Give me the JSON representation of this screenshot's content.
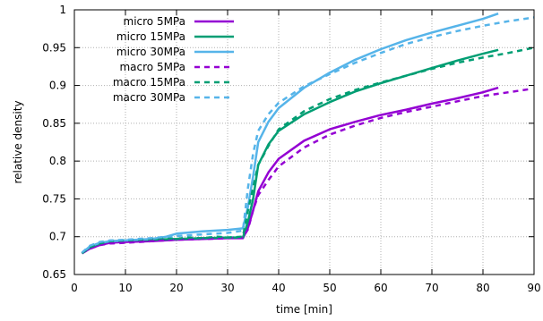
{
  "chart_data": {
    "type": "line",
    "title": "",
    "xlabel": "time [min]",
    "ylabel": "relative density",
    "xlim": [
      0,
      90
    ],
    "ylim": [
      0.65,
      1.0
    ],
    "x_ticks": [
      0,
      10,
      20,
      30,
      40,
      50,
      60,
      70,
      80,
      90
    ],
    "x_tick_labels": [
      "0",
      "10",
      "20",
      "30",
      "40",
      "50",
      "60",
      "70",
      "80",
      "90"
    ],
    "y_ticks": [
      0.65,
      0.7,
      0.75,
      0.8,
      0.85,
      0.9,
      0.95,
      1.0
    ],
    "y_tick_labels": [
      "0.65",
      "0.7",
      "0.75",
      "0.8",
      "0.85",
      "0.9",
      "0.95",
      "1"
    ],
    "grid": true,
    "legend_position": "top-left",
    "series": [
      {
        "name": "micro  5MPa",
        "color": "#9400d3",
        "style": "solid",
        "points": [
          [
            1.5,
            0.678
          ],
          [
            3,
            0.684
          ],
          [
            5,
            0.689
          ],
          [
            7,
            0.692
          ],
          [
            10,
            0.693
          ],
          [
            15,
            0.694
          ],
          [
            20,
            0.696
          ],
          [
            25,
            0.697
          ],
          [
            30,
            0.698
          ],
          [
            33,
            0.698
          ],
          [
            34,
            0.712
          ],
          [
            35,
            0.735
          ],
          [
            36,
            0.76
          ],
          [
            38,
            0.785
          ],
          [
            40,
            0.803
          ],
          [
            45,
            0.827
          ],
          [
            50,
            0.842
          ],
          [
            55,
            0.852
          ],
          [
            60,
            0.861
          ],
          [
            65,
            0.868
          ],
          [
            70,
            0.876
          ],
          [
            75,
            0.883
          ],
          [
            80,
            0.891
          ],
          [
            83,
            0.897
          ]
        ]
      },
      {
        "name": "micro 15MPa",
        "color": "#009e73",
        "style": "solid",
        "points": [
          [
            1.5,
            0.678
          ],
          [
            3,
            0.686
          ],
          [
            5,
            0.691
          ],
          [
            7,
            0.694
          ],
          [
            10,
            0.695
          ],
          [
            15,
            0.696
          ],
          [
            20,
            0.697
          ],
          [
            25,
            0.698
          ],
          [
            30,
            0.699
          ],
          [
            33,
            0.699
          ],
          [
            34,
            0.72
          ],
          [
            35,
            0.75
          ],
          [
            36,
            0.795
          ],
          [
            38,
            0.822
          ],
          [
            40,
            0.84
          ],
          [
            45,
            0.862
          ],
          [
            50,
            0.878
          ],
          [
            55,
            0.892
          ],
          [
            60,
            0.903
          ],
          [
            65,
            0.913
          ],
          [
            70,
            0.923
          ],
          [
            75,
            0.933
          ],
          [
            80,
            0.942
          ],
          [
            83,
            0.947
          ]
        ]
      },
      {
        "name": "micro 30MPa",
        "color": "#56b4e9",
        "style": "solid",
        "points": [
          [
            1.5,
            0.678
          ],
          [
            3,
            0.687
          ],
          [
            5,
            0.692
          ],
          [
            7,
            0.694
          ],
          [
            10,
            0.695
          ],
          [
            15,
            0.697
          ],
          [
            18,
            0.7
          ],
          [
            20,
            0.704
          ],
          [
            25,
            0.707
          ],
          [
            30,
            0.709
          ],
          [
            33,
            0.711
          ],
          [
            34,
            0.74
          ],
          [
            35,
            0.78
          ],
          [
            36,
            0.825
          ],
          [
            38,
            0.852
          ],
          [
            40,
            0.87
          ],
          [
            45,
            0.897
          ],
          [
            50,
            0.917
          ],
          [
            55,
            0.934
          ],
          [
            60,
            0.948
          ],
          [
            65,
            0.96
          ],
          [
            70,
            0.97
          ],
          [
            75,
            0.979
          ],
          [
            80,
            0.988
          ],
          [
            83,
            0.995
          ]
        ]
      },
      {
        "name": "macro  5MPa",
        "color": "#9400d3",
        "style": "dashed",
        "points": [
          [
            1.5,
            0.678
          ],
          [
            3,
            0.684
          ],
          [
            5,
            0.689
          ],
          [
            7,
            0.691
          ],
          [
            10,
            0.692
          ],
          [
            15,
            0.694
          ],
          [
            20,
            0.696
          ],
          [
            25,
            0.697
          ],
          [
            30,
            0.698
          ],
          [
            33,
            0.699
          ],
          [
            34,
            0.71
          ],
          [
            35,
            0.735
          ],
          [
            36,
            0.755
          ],
          [
            38,
            0.775
          ],
          [
            40,
            0.793
          ],
          [
            45,
            0.818
          ],
          [
            50,
            0.835
          ],
          [
            55,
            0.847
          ],
          [
            60,
            0.857
          ],
          [
            65,
            0.865
          ],
          [
            70,
            0.872
          ],
          [
            75,
            0.879
          ],
          [
            80,
            0.886
          ],
          [
            85,
            0.891
          ],
          [
            89,
            0.895
          ]
        ]
      },
      {
        "name": "macro 15MPa",
        "color": "#009e73",
        "style": "dashed",
        "points": [
          [
            1.5,
            0.678
          ],
          [
            3,
            0.686
          ],
          [
            5,
            0.691
          ],
          [
            7,
            0.694
          ],
          [
            10,
            0.695
          ],
          [
            15,
            0.697
          ],
          [
            18,
            0.698
          ],
          [
            20,
            0.697
          ],
          [
            22,
            0.699
          ],
          [
            25,
            0.698
          ],
          [
            28,
            0.7
          ],
          [
            30,
            0.699
          ],
          [
            33,
            0.7
          ],
          [
            34,
            0.735
          ],
          [
            35,
            0.765
          ],
          [
            36,
            0.795
          ],
          [
            38,
            0.82
          ],
          [
            40,
            0.842
          ],
          [
            45,
            0.866
          ],
          [
            50,
            0.882
          ],
          [
            55,
            0.894
          ],
          [
            60,
            0.904
          ],
          [
            65,
            0.913
          ],
          [
            70,
            0.922
          ],
          [
            75,
            0.93
          ],
          [
            80,
            0.937
          ],
          [
            85,
            0.943
          ],
          [
            90,
            0.95
          ]
        ]
      },
      {
        "name": "macro 30MPa",
        "color": "#56b4e9",
        "style": "dashed",
        "points": [
          [
            1.5,
            0.679
          ],
          [
            3,
            0.688
          ],
          [
            5,
            0.693
          ],
          [
            7,
            0.695
          ],
          [
            10,
            0.696
          ],
          [
            15,
            0.698
          ],
          [
            18,
            0.7
          ],
          [
            20,
            0.701
          ],
          [
            25,
            0.703
          ],
          [
            30,
            0.705
          ],
          [
            33,
            0.708
          ],
          [
            34,
            0.765
          ],
          [
            35,
            0.81
          ],
          [
            36,
            0.84
          ],
          [
            38,
            0.862
          ],
          [
            40,
            0.877
          ],
          [
            45,
            0.899
          ],
          [
            50,
            0.915
          ],
          [
            55,
            0.93
          ],
          [
            60,
            0.943
          ],
          [
            65,
            0.955
          ],
          [
            70,
            0.964
          ],
          [
            75,
            0.972
          ],
          [
            80,
            0.979
          ],
          [
            85,
            0.985
          ],
          [
            90,
            0.99
          ]
        ]
      }
    ]
  }
}
